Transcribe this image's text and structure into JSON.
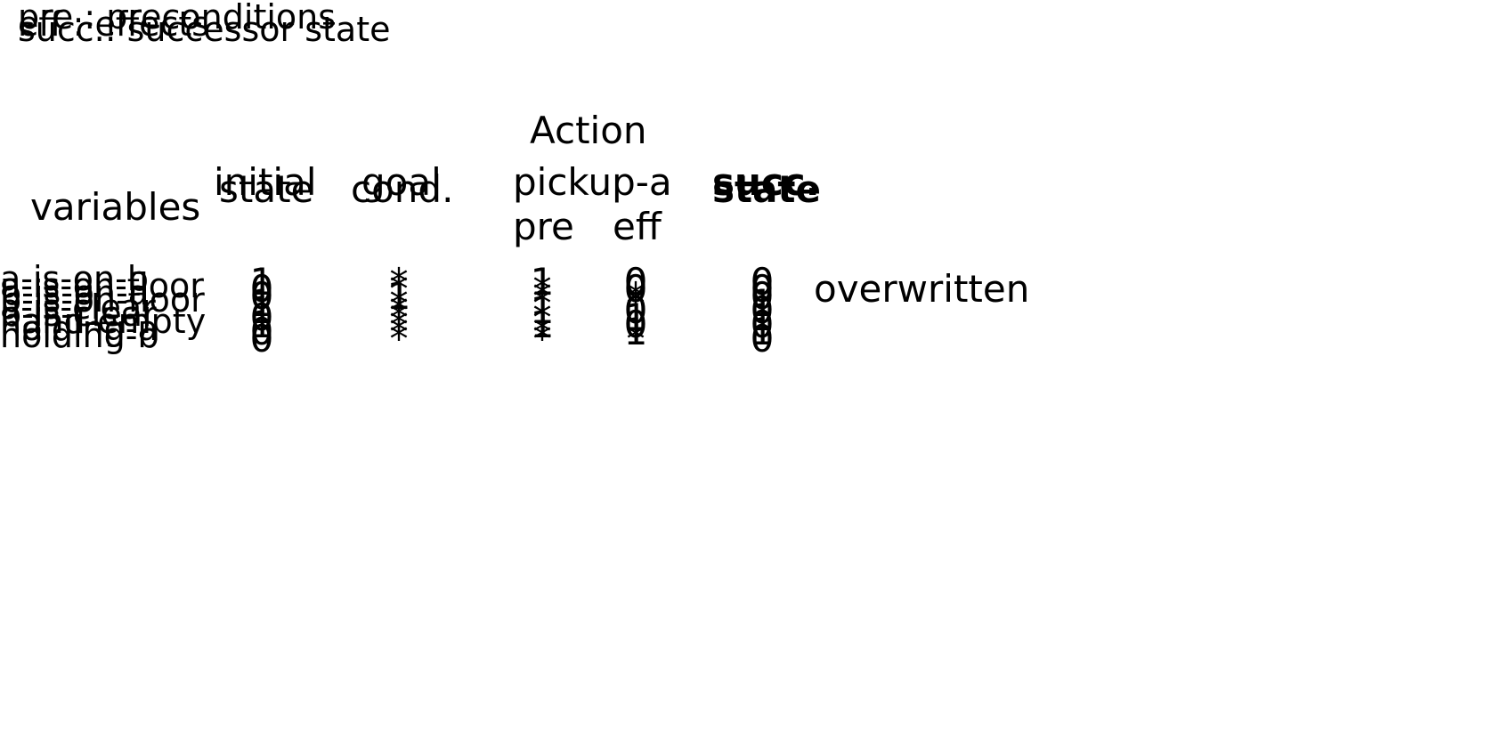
{
  "legend": [
    "pre : preconditions",
    "eff : effects",
    "succ.: successor state"
  ],
  "headers": {
    "variables": "variables",
    "initial": "initial",
    "initial_sub": "state",
    "goal": "goal",
    "goal_sub": "cond.",
    "action": "Action",
    "action_name": "pickup-a",
    "pre": "pre",
    "eff": "eff",
    "succ": "succ.",
    "succ_sub": "state"
  },
  "annotation": "overwritten",
  "rows": [
    {
      "variable": "a-is-on-b",
      "initial": "1",
      "goal": "*",
      "pre": "1",
      "eff": "0",
      "succ": "0"
    },
    {
      "variable": "a-is-on-floor",
      "initial": "0",
      "goal": "*",
      "pre": "*",
      "eff": "0",
      "succ": "0"
    },
    {
      "variable": "b-is-on-a",
      "initial": "0",
      "goal": "1",
      "pre": "*",
      "eff": "*",
      "succ": "0"
    },
    {
      "variable": "b-is-on-floor",
      "initial": "1",
      "goal": "*",
      "pre": "*",
      "eff": "*",
      "succ": "1"
    },
    {
      "variable": "a-is-clear",
      "initial": "1",
      "goal": "*",
      "pre": "1",
      "eff": "0",
      "succ": "0"
    },
    {
      "variable": "b-is-clear",
      "initial": "0",
      "goal": "*",
      "pre": "*",
      "eff": "1",
      "succ": "1"
    },
    {
      "variable": "hand-empty",
      "initial": "1",
      "goal": "*",
      "pre": "1",
      "eff": "0",
      "succ": "0"
    },
    {
      "variable": "holding-a",
      "initial": "0",
      "goal": "*",
      "pre": "*",
      "eff": "1",
      "succ": "1"
    },
    {
      "variable": "holding-b",
      "initial": "0",
      "goal": "*",
      "pre": "*",
      "eff": "*",
      "succ": "0"
    }
  ]
}
